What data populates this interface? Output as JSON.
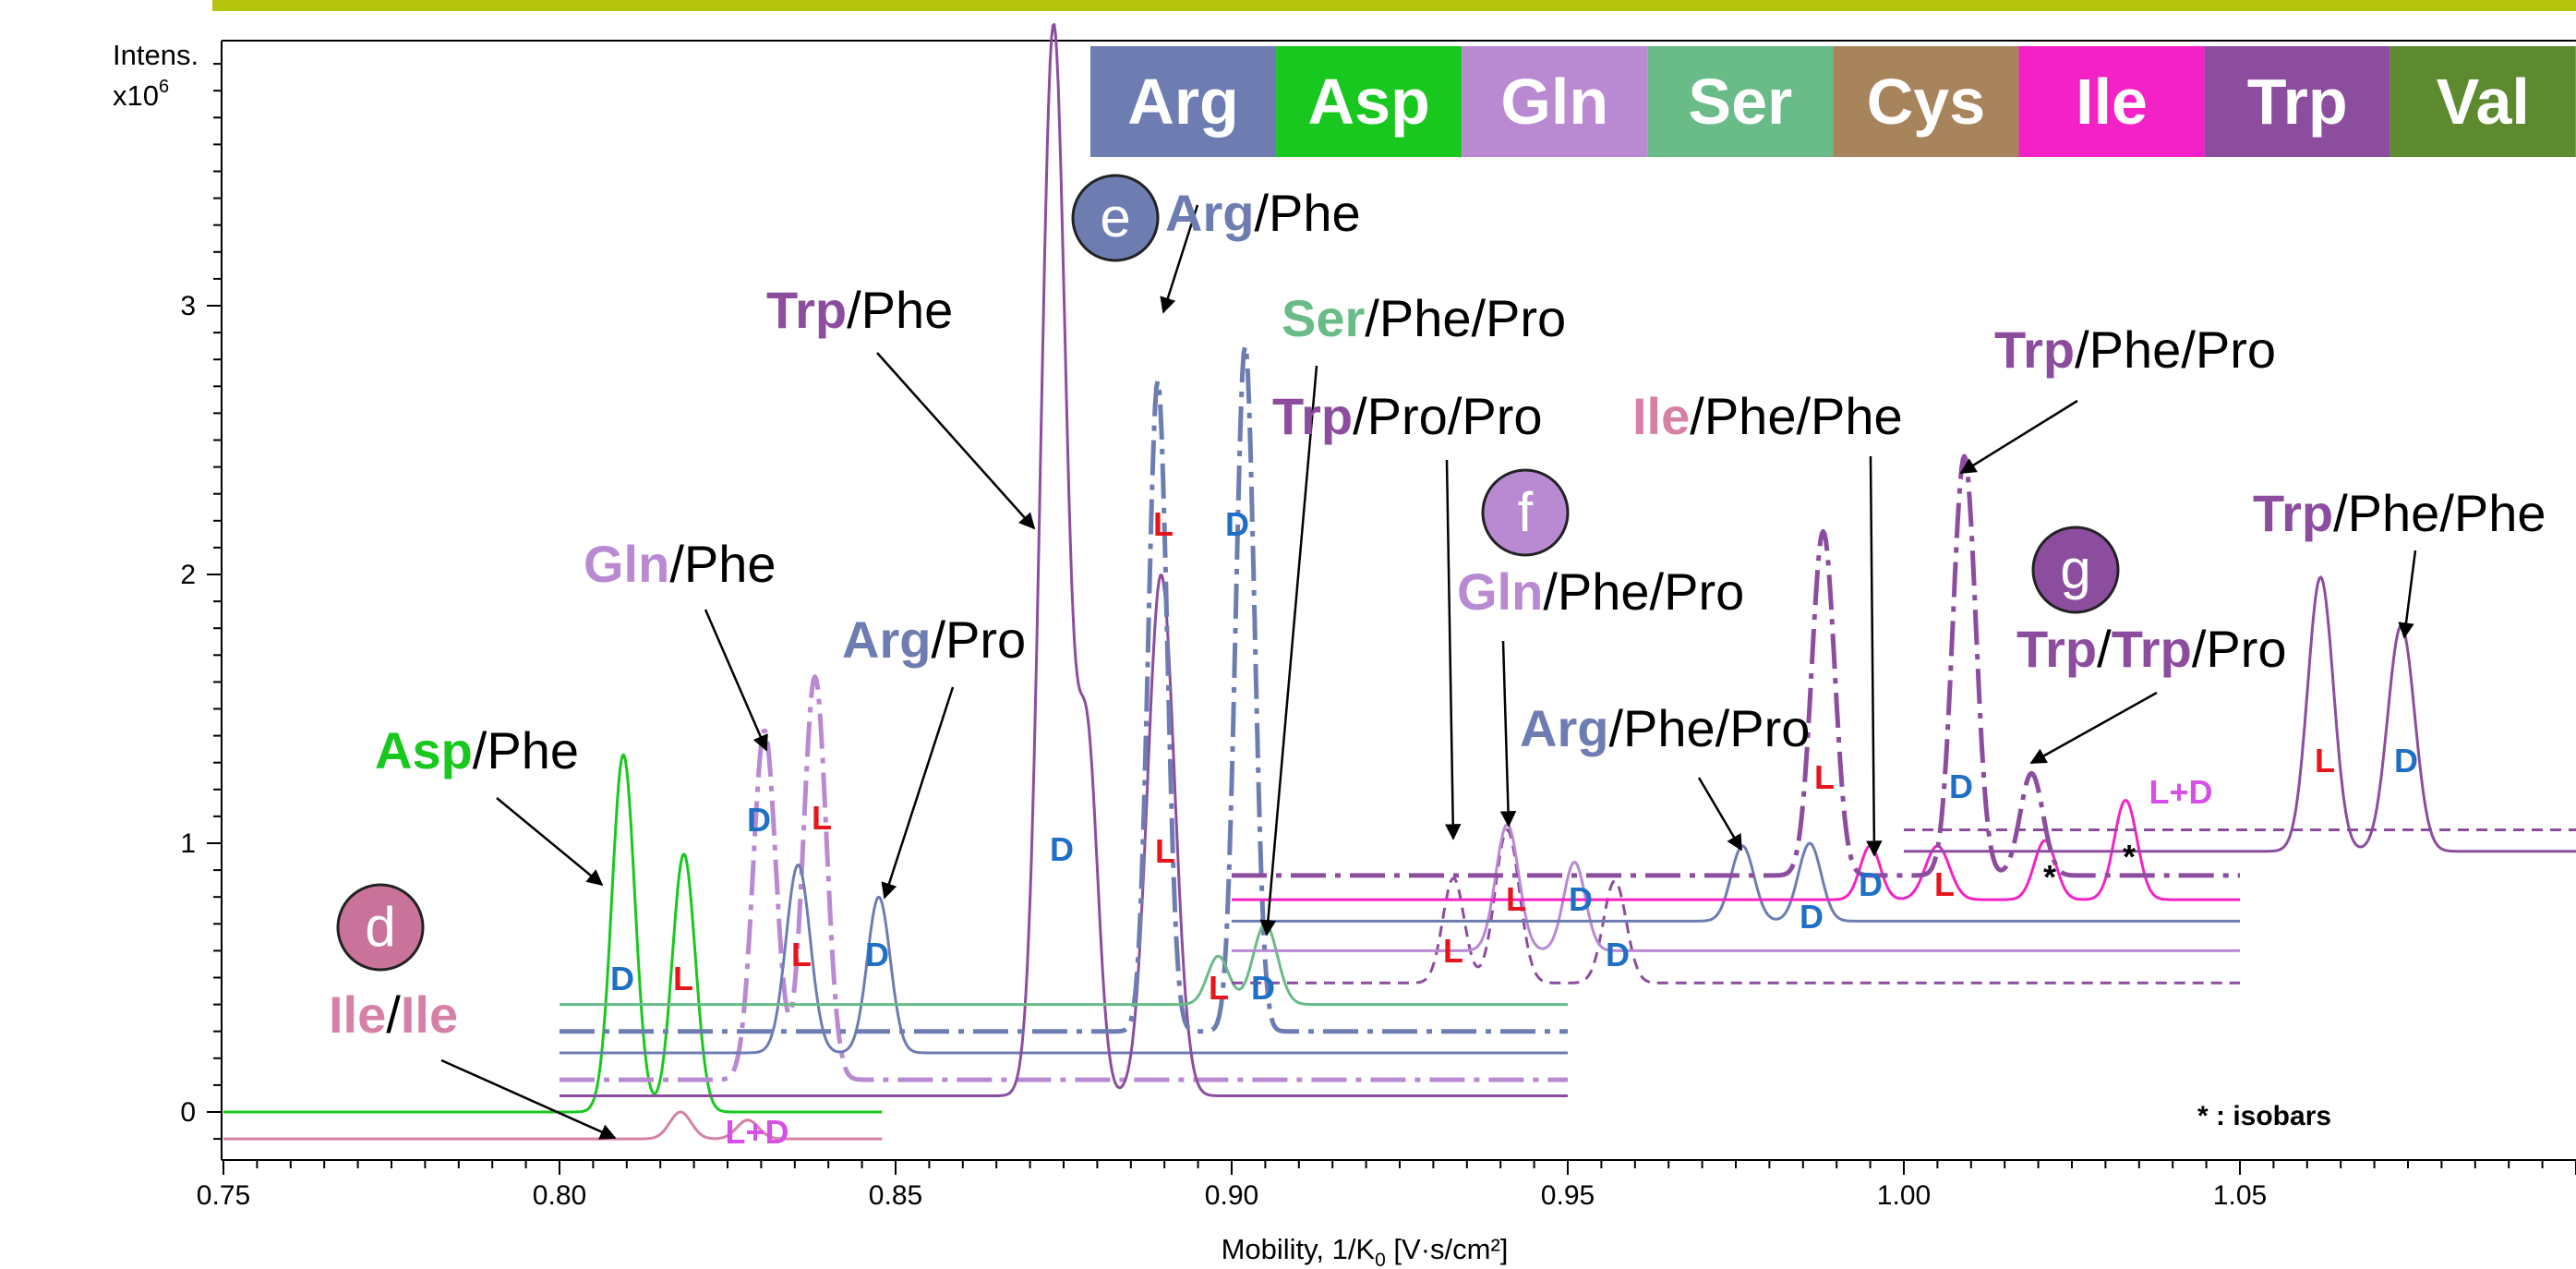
{
  "chart_data": {
    "type": "line",
    "title": "",
    "xlabel": "Mobility, 1/K0 [V·s/cm²]",
    "xlabel_main": "Mobility, 1/K",
    "xlabel_sub": "0",
    "xlabel_tail": " [V·s/cm²]",
    "ylabel_line1": "Intens.",
    "ylabel_line2": "x10",
    "ylabel_sup": "6",
    "xlim": [
      0.75,
      1.1
    ],
    "ylim": [
      -0.17,
      4.0
    ],
    "x_ticks": [
      "0.75",
      "0.80",
      "0.85",
      "0.90",
      "0.95",
      "1.00",
      "1.05"
    ],
    "x_tick_values": [
      0.75,
      0.8,
      0.85,
      0.9,
      0.95,
      1.0,
      1.05
    ],
    "y_ticks": [
      "0",
      "1",
      "2",
      "3"
    ],
    "y_tick_values": [
      0,
      1,
      2,
      3
    ],
    "grid": false,
    "legend": {
      "placement": "top-right",
      "entries": [
        {
          "label": "Arg",
          "color": "#6e7db1"
        },
        {
          "label": "Asp",
          "color": "#18c81e"
        },
        {
          "label": "Gln",
          "color": "#b98ad2"
        },
        {
          "label": "Ser",
          "color": "#69bb87"
        },
        {
          "label": "Cys",
          "color": "#a8845c"
        },
        {
          "label": "Ile",
          "color": "#f422c6"
        },
        {
          "label": "Trp",
          "color": "#8c4d9f"
        },
        {
          "label": "Val",
          "color": "#5d8a2f"
        }
      ]
    },
    "series": [
      {
        "color": "#d680a6",
        "style": "solid",
        "width": 3,
        "baseline": -0.1,
        "x_range": [
          0.75,
          0.848
        ],
        "peaks": [
          {
            "x": 0.818,
            "h": 0.1,
            "w": 0.0016
          },
          {
            "x": 0.828,
            "h": 0.07,
            "w": 0.0016
          }
        ]
      },
      {
        "color": "#18c81e",
        "style": "solid",
        "width": 3,
        "baseline": 0.0,
        "x_range": [
          0.75,
          0.848
        ],
        "peaks": [
          {
            "x": 0.8095,
            "h": 1.33,
            "w": 0.0017
          },
          {
            "x": 0.8185,
            "h": 0.96,
            "w": 0.0017
          }
        ]
      },
      {
        "color": "#b98ad2",
        "style": "dashdot",
        "width": 5,
        "baseline": 0.12,
        "x_range": [
          0.8,
          0.95
        ],
        "peaks": [
          {
            "x": 0.8305,
            "h": 1.3,
            "w": 0.0017
          },
          {
            "x": 0.838,
            "h": 1.5,
            "w": 0.0017
          }
        ]
      },
      {
        "color": "#6e7db1",
        "style": "solid",
        "width": 3,
        "baseline": 0.22,
        "x_range": [
          0.8,
          0.95
        ],
        "peaks": [
          {
            "x": 0.8355,
            "h": 0.7,
            "w": 0.0018
          },
          {
            "x": 0.8475,
            "h": 0.58,
            "w": 0.0017
          }
        ]
      },
      {
        "color": "#8c4d9f",
        "style": "solid",
        "width": 3,
        "baseline": 0.06,
        "x_range": [
          0.8,
          0.95
        ],
        "peaks": [
          {
            "x": 0.8735,
            "h": 3.98,
            "w": 0.0019
          },
          {
            "x": 0.8785,
            "h": 1.3,
            "w": 0.0016
          },
          {
            "x": 0.8895,
            "h": 1.94,
            "w": 0.002
          }
        ]
      },
      {
        "color": "#6e7db1",
        "style": "dashdot",
        "width": 5,
        "baseline": 0.3,
        "x_range": [
          0.8,
          0.95
        ],
        "peaks": [
          {
            "x": 0.889,
            "h": 2.42,
            "w": 0.0014
          },
          {
            "x": 0.902,
            "h": 2.55,
            "w": 0.0014
          }
        ]
      },
      {
        "color": "#69bb87",
        "style": "solid",
        "width": 3,
        "baseline": 0.4,
        "x_range": [
          0.8,
          0.95
        ],
        "peaks": [
          {
            "x": 0.898,
            "h": 0.18,
            "w": 0.0016
          },
          {
            "x": 0.905,
            "h": 0.3,
            "w": 0.0018
          }
        ]
      },
      {
        "color": "#8c4d9f",
        "style": "dashed",
        "width": 3,
        "baseline": 0.48,
        "x_range": [
          0.9,
          1.05
        ],
        "peaks": [
          {
            "x": 0.933,
            "h": 0.39,
            "w": 0.0016
          },
          {
            "x": 0.941,
            "h": 0.57,
            "w": 0.0018
          },
          {
            "x": 0.957,
            "h": 0.38,
            "w": 0.0017
          }
        ]
      },
      {
        "color": "#b98ad2",
        "style": "solid",
        "width": 3,
        "baseline": 0.6,
        "x_range": [
          0.9,
          1.05
        ],
        "peaks": [
          {
            "x": 0.941,
            "h": 0.47,
            "w": 0.0017
          },
          {
            "x": 0.951,
            "h": 0.33,
            "w": 0.0016
          }
        ]
      },
      {
        "color": "#6e7db1",
        "style": "solid",
        "width": 3,
        "baseline": 0.71,
        "x_range": [
          0.9,
          1.05
        ],
        "peaks": [
          {
            "x": 0.976,
            "h": 0.28,
            "w": 0.0017
          },
          {
            "x": 0.986,
            "h": 0.29,
            "w": 0.0017
          }
        ]
      },
      {
        "color": "#f422c6",
        "style": "solid",
        "width": 3,
        "baseline": 0.79,
        "x_range": [
          0.9,
          1.05
        ],
        "peaks": [
          {
            "x": 0.995,
            "h": 0.2,
            "w": 0.0015
          },
          {
            "x": 1.005,
            "h": 0.2,
            "w": 0.0018
          },
          {
            "x": 1.021,
            "h": 0.22,
            "w": 0.0016
          },
          {
            "x": 1.033,
            "h": 0.37,
            "w": 0.0017
          }
        ]
      },
      {
        "color": "#8c4d9f",
        "style": "dashdot",
        "width": 5,
        "baseline": 0.88,
        "x_range": [
          0.9,
          1.05
        ],
        "peaks": [
          {
            "x": 0.988,
            "h": 1.28,
            "w": 0.0017
          },
          {
            "x": 1.009,
            "h": 1.56,
            "w": 0.0017
          },
          {
            "x": 1.019,
            "h": 0.38,
            "w": 0.0017
          }
        ]
      },
      {
        "color": "#8c4d9f",
        "style": "solid",
        "width": 3,
        "baseline": 0.97,
        "x_range": [
          1.0,
          1.1
        ],
        "peaks": [
          {
            "x": 1.062,
            "h": 1.02,
            "w": 0.0019
          },
          {
            "x": 1.074,
            "h": 0.84,
            "w": 0.002
          }
        ]
      },
      {
        "color": "#8c4d9f",
        "style": "dashed",
        "width": 3,
        "baseline": 1.05,
        "x_range": [
          1.0,
          1.1
        ],
        "peaks": []
      }
    ],
    "annotations": [
      {
        "parts": [
          {
            "t": "Asp",
            "c": "#18c81e",
            "b": true
          },
          {
            "t": "/Phe",
            "c": "#000000",
            "b": false
          }
        ]
      },
      {
        "parts": [
          {
            "t": "Ile",
            "c": "#d680a6",
            "b": true
          },
          {
            "t": "/",
            "c": "#000000",
            "b": false
          },
          {
            "t": "Ile",
            "c": "#d680a6",
            "b": true
          }
        ]
      },
      {
        "parts": [
          {
            "t": "Gln",
            "c": "#b98ad2",
            "b": true
          },
          {
            "t": "/Phe",
            "c": "#000000",
            "b": false
          }
        ]
      },
      {
        "parts": [
          {
            "t": "Arg",
            "c": "#6e7db1",
            "b": true
          },
          {
            "t": "/Pro",
            "c": "#000000",
            "b": false
          }
        ]
      },
      {
        "parts": [
          {
            "t": "Trp",
            "c": "#8c4d9f",
            "b": true
          },
          {
            "t": "/Phe",
            "c": "#000000",
            "b": false
          }
        ]
      },
      {
        "parts": [
          {
            "t": "Arg",
            "c": "#6e7db1",
            "b": true
          },
          {
            "t": "/Phe",
            "c": "#000000",
            "b": false
          }
        ]
      },
      {
        "parts": [
          {
            "t": "Ser",
            "c": "#69bb87",
            "b": true
          },
          {
            "t": "/Phe/Pro",
            "c": "#000000",
            "b": false
          }
        ]
      },
      {
        "parts": [
          {
            "t": "Trp",
            "c": "#8c4d9f",
            "b": true
          },
          {
            "t": "/Pro/Pro",
            "c": "#000000",
            "b": false
          }
        ]
      },
      {
        "parts": [
          {
            "t": "Gln",
            "c": "#b98ad2",
            "b": true
          },
          {
            "t": "/Phe/Pro",
            "c": "#000000",
            "b": false
          }
        ]
      },
      {
        "parts": [
          {
            "t": "Arg",
            "c": "#6e7db1",
            "b": true
          },
          {
            "t": "/Phe/Pro",
            "c": "#000000",
            "b": false
          }
        ]
      },
      {
        "parts": [
          {
            "t": "Ile",
            "c": "#d680a6",
            "b": true
          },
          {
            "t": "/Phe/Phe",
            "c": "#000000",
            "b": false
          }
        ]
      },
      {
        "parts": [
          {
            "t": "Trp",
            "c": "#8c4d9f",
            "b": true
          },
          {
            "t": "/Phe/Pro",
            "c": "#000000",
            "b": false
          }
        ]
      },
      {
        "parts": [
          {
            "t": "Trp",
            "c": "#8c4d9f",
            "b": true
          },
          {
            "t": "/",
            "c": "#000000",
            "b": false
          },
          {
            "t": "Trp",
            "c": "#8c4d9f",
            "b": true
          },
          {
            "t": "/Pro",
            "c": "#000000",
            "b": false
          }
        ]
      },
      {
        "parts": [
          {
            "t": "Trp",
            "c": "#8c4d9f",
            "b": true
          },
          {
            "t": "/Phe/Phe",
            "c": "#000000",
            "b": false
          }
        ]
      }
    ],
    "panel_labels": [
      {
        "label": "d",
        "color": "#c9739b"
      },
      {
        "label": "e",
        "color": "#6e7db1"
      },
      {
        "label": "f",
        "color": "#b98ad2"
      },
      {
        "label": "g",
        "color": "#8c4d9f"
      }
    ],
    "peak_markers": [
      {
        "t": "D",
        "c": "#1f6fc4"
      },
      {
        "t": "L",
        "c": "#e8141c"
      },
      {
        "t": "L+D",
        "c": "#d84fe8"
      },
      {
        "t": "D",
        "c": "#1f6fc4"
      },
      {
        "t": "L",
        "c": "#e8141c"
      },
      {
        "t": "L",
        "c": "#e8141c"
      },
      {
        "t": "D",
        "c": "#1f6fc4"
      },
      {
        "t": "D",
        "c": "#1f6fc4"
      },
      {
        "t": "L",
        "c": "#e8141c"
      },
      {
        "t": "D",
        "c": "#1f6fc4"
      },
      {
        "t": "L",
        "c": "#e8141c"
      },
      {
        "t": "L",
        "c": "#e8141c"
      },
      {
        "t": "D",
        "c": "#1f6fc4"
      },
      {
        "t": "L",
        "c": "#e8141c"
      },
      {
        "t": "L",
        "c": "#e8141c"
      },
      {
        "t": "D",
        "c": "#1f6fc4"
      },
      {
        "t": "D",
        "c": "#1f6fc4"
      },
      {
        "t": "L",
        "c": "#e8141c"
      },
      {
        "t": "D",
        "c": "#1f6fc4"
      },
      {
        "t": "D",
        "c": "#1f6fc4"
      },
      {
        "t": "L",
        "c": "#e8141c"
      },
      {
        "t": "D",
        "c": "#1f6fc4"
      },
      {
        "t": "L+D",
        "c": "#d84fe8"
      },
      {
        "t": "L",
        "c": "#e8141c"
      },
      {
        "t": "D",
        "c": "#1f6fc4"
      },
      {
        "t": "*",
        "c": "#000000"
      },
      {
        "t": "*",
        "c": "#000000"
      }
    ],
    "isobar_note": "* : isobars"
  }
}
